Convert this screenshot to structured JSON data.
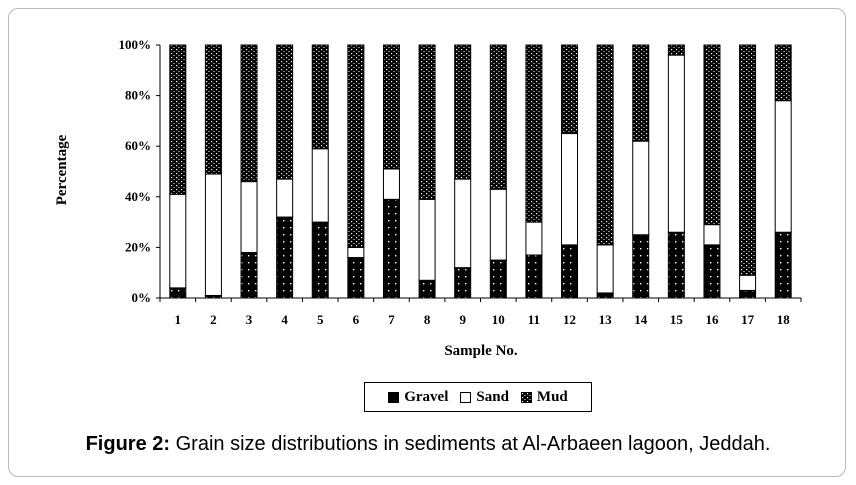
{
  "chart_data": {
    "type": "bar",
    "stacked": true,
    "percent_stacked": true,
    "categories": [
      "1",
      "2",
      "3",
      "4",
      "5",
      "6",
      "7",
      "8",
      "9",
      "10",
      "11",
      "12",
      "13",
      "14",
      "15",
      "16",
      "17",
      "18"
    ],
    "series": [
      {
        "name": "Gravel",
        "color": "#000000",
        "values": [
          4,
          1,
          18,
          32,
          30,
          16,
          39,
          7,
          12,
          15,
          17,
          21,
          2,
          25,
          26,
          21,
          3,
          26
        ]
      },
      {
        "name": "Sand",
        "color": "#ffffff",
        "values": [
          37,
          48,
          28,
          15,
          29,
          4,
          12,
          32,
          35,
          28,
          13,
          44,
          19,
          37,
          70,
          8,
          6,
          52
        ]
      },
      {
        "name": "Mud",
        "color": "#000000",
        "values": [
          59,
          51,
          54,
          53,
          41,
          80,
          49,
          61,
          53,
          57,
          70,
          35,
          79,
          38,
          4,
          71,
          91,
          22
        ]
      }
    ],
    "xlabel": "Sample No.",
    "ylabel": "Percentage",
    "ylim": [
      0,
      100
    ],
    "yticks": [
      "0%",
      "20%",
      "40%",
      "60%",
      "80%",
      "100%"
    ],
    "legend_position": "bottom"
  },
  "caption": {
    "label": "Figure 2:",
    "text": "Grain size distributions in sediments at Al-Arbaeen lagoon, Jeddah."
  }
}
